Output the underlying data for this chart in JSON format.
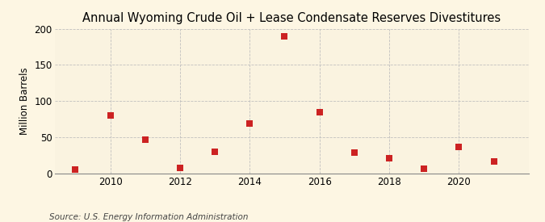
{
  "title": "Annual Wyoming Crude Oil + Lease Condensate Reserves Divestitures",
  "ylabel": "Million Barrels",
  "source": "Source: U.S. Energy Information Administration",
  "years": [
    2009,
    2010,
    2011,
    2012,
    2013,
    2014,
    2015,
    2016,
    2017,
    2018,
    2019,
    2020,
    2021
  ],
  "values": [
    5,
    80,
    46,
    7,
    30,
    69,
    190,
    84,
    28,
    21,
    6,
    36,
    16
  ],
  "ylim": [
    0,
    200
  ],
  "xlim": [
    2008.4,
    2022.0
  ],
  "yticks": [
    0,
    50,
    100,
    150,
    200
  ],
  "xticks": [
    2010,
    2012,
    2014,
    2016,
    2018,
    2020
  ],
  "marker_color": "#cc2222",
  "marker_size": 6,
  "background_color": "#fdf6e3",
  "plot_bg_color": "#faf3e0",
  "grid_color": "#bbbbbb",
  "title_fontsize": 10.5,
  "label_fontsize": 8.5,
  "tick_fontsize": 8.5,
  "source_fontsize": 7.5
}
